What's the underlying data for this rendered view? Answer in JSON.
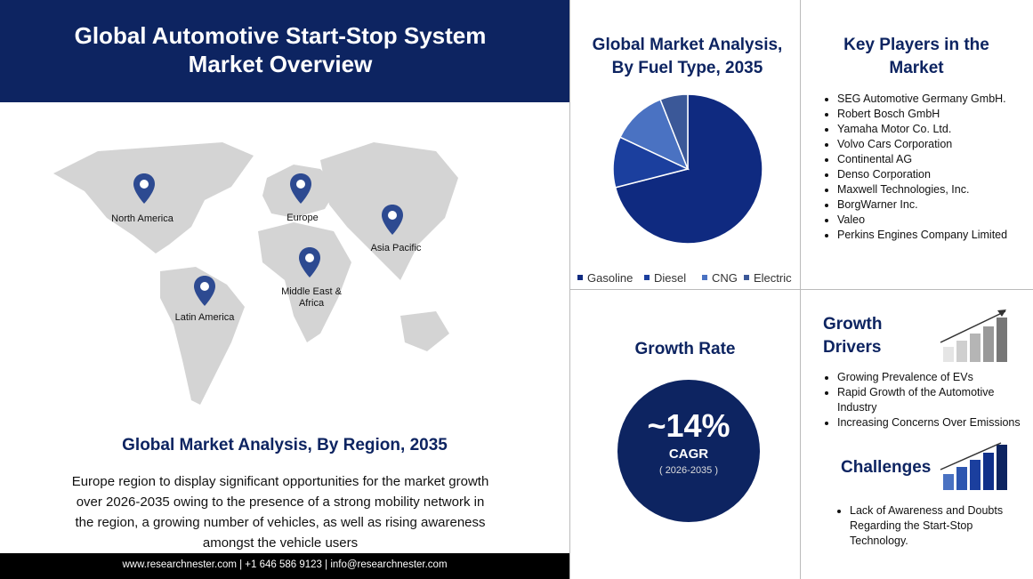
{
  "header": {
    "title": "Global Automotive Start-Stop System Market Overview"
  },
  "region": {
    "map_labels": [
      "North America",
      "Europe",
      "Asia Pacific",
      "Middle East & Africa",
      "Latin America"
    ],
    "title": "Global Market Analysis, By Region, 2035",
    "text": "Europe region to display significant opportunities for the market growth over 2026-2035 owing to the presence of a strong mobility network in the region, a growing number of vehicles, as well as rising awareness amongst the vehicle users"
  },
  "footer": "www.researchnester.com | +1 646 586 9123 | info@researchnester.com",
  "chart_data": {
    "type": "pie",
    "title": "Global Market Analysis, By Fuel Type, 2035",
    "categories": [
      "Gasoline",
      "Diesel",
      "CNG",
      "Electric"
    ],
    "values": [
      71,
      11,
      12,
      6
    ],
    "colors": [
      "#0f2a80",
      "#1b3f9e",
      "#4a72c2",
      "#3b5898"
    ]
  },
  "key_players": {
    "title": "Key Players in the Market",
    "items": [
      "SEG Automotive Germany GmbH.",
      "Robert Bosch GmbH",
      "Yamaha Motor Co. Ltd.",
      "Volvo Cars Corporation",
      "Continental AG",
      "Denso Corporation",
      "Maxwell Technologies, Inc.",
      "BorgWarner Inc.",
      "Valeo",
      "Perkins Engines Company Limited"
    ]
  },
  "growth": {
    "title": "Growth Rate",
    "value": "~14%",
    "label": "CAGR",
    "period": "( 2026-2035 )"
  },
  "drivers": {
    "title": "Growth Drivers",
    "items": [
      "Growing Prevalence of EVs",
      "Rapid Growth of the Automotive Industry",
      "Increasing Concerns Over Emissions"
    ]
  },
  "challenges": {
    "title": "Challenges",
    "items": [
      "Lack of Awareness and Doubts Regarding the Start-Stop Technology."
    ]
  }
}
